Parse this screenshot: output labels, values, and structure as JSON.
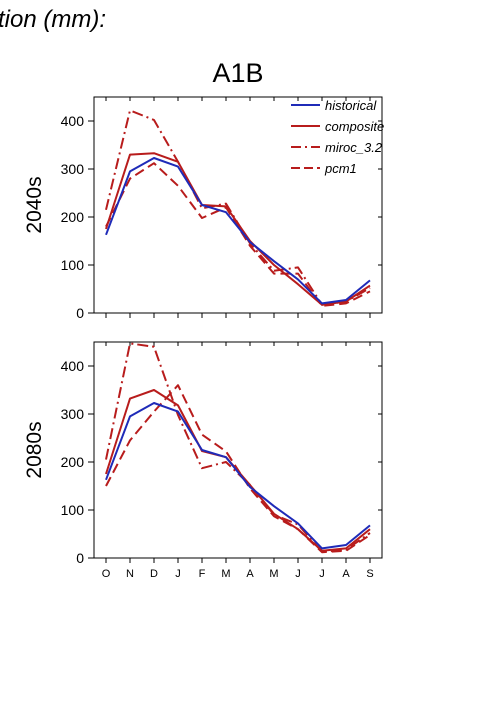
{
  "header_text": "tion (mm):",
  "colors": {
    "historical": "#1f2bb8",
    "model": "#b81c1c",
    "axis": "#000000"
  },
  "chart_data": [
    {
      "type": "line",
      "title": "A1B",
      "row_label": "2040s",
      "categories": [
        "O",
        "N",
        "D",
        "J",
        "F",
        "M",
        "A",
        "M",
        "J",
        "J",
        "A",
        "S"
      ],
      "ylim": [
        0,
        450
      ],
      "yticks": [
        0,
        100,
        200,
        300,
        400
      ],
      "legend_position": "top-right",
      "series": [
        {
          "name": "historical",
          "style": "solid",
          "color": "#1f2bb8",
          "values": [
            163,
            295,
            323,
            305,
            225,
            210,
            148,
            108,
            70,
            20,
            27,
            68
          ]
        },
        {
          "name": "composite",
          "style": "solid",
          "color": "#b81c1c",
          "values": [
            175,
            330,
            333,
            315,
            225,
            222,
            150,
            100,
            60,
            17,
            24,
            57
          ]
        },
        {
          "name": "miroc_3.2",
          "style": "dashdot",
          "color": "#b81c1c",
          "values": [
            215,
            422,
            402,
            315,
            218,
            228,
            145,
            88,
            95,
            17,
            24,
            52
          ]
        },
        {
          "name": "pcm1",
          "style": "dashed",
          "color": "#b81c1c",
          "values": [
            180,
            280,
            312,
            265,
            198,
            220,
            140,
            82,
            82,
            15,
            20,
            45
          ]
        }
      ]
    },
    {
      "type": "line",
      "title": "",
      "row_label": "2080s",
      "categories": [
        "O",
        "N",
        "D",
        "J",
        "F",
        "M",
        "A",
        "M",
        "J",
        "J",
        "A",
        "S"
      ],
      "ylim": [
        0,
        450
      ],
      "yticks": [
        0,
        100,
        200,
        300,
        400
      ],
      "series": [
        {
          "name": "historical",
          "style": "solid",
          "color": "#1f2bb8",
          "values": [
            163,
            295,
            323,
            305,
            225,
            210,
            148,
            108,
            72,
            20,
            27,
            68
          ]
        },
        {
          "name": "composite",
          "style": "solid",
          "color": "#b81c1c",
          "values": [
            175,
            332,
            350,
            318,
            223,
            210,
            152,
            92,
            60,
            15,
            20,
            60
          ]
        },
        {
          "name": "miroc_3.2",
          "style": "dashdot",
          "color": "#b81c1c",
          "values": [
            205,
            447,
            440,
            298,
            187,
            200,
            152,
            90,
            70,
            13,
            17,
            52
          ]
        },
        {
          "name": "pcm1",
          "style": "dashed",
          "color": "#b81c1c",
          "values": [
            150,
            245,
            305,
            360,
            257,
            222,
            145,
            87,
            60,
            12,
            15,
            48
          ]
        }
      ]
    }
  ]
}
